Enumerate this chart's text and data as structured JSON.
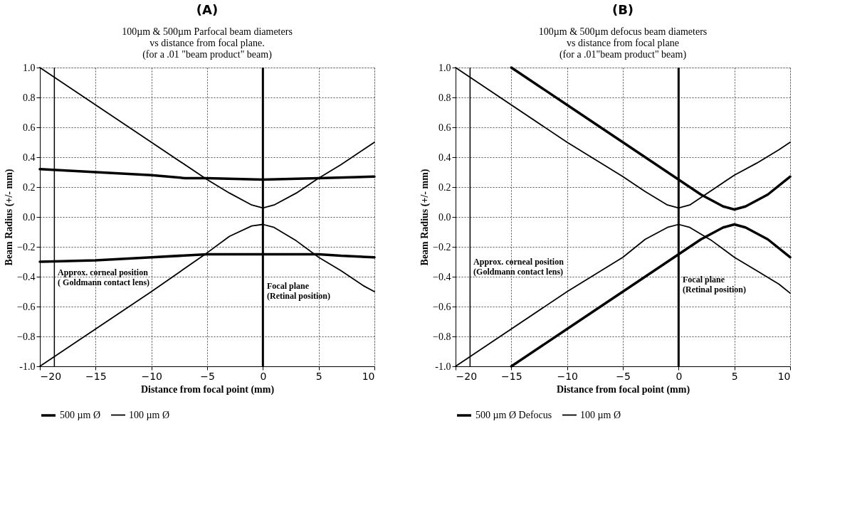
{
  "chart_data": [
    {
      "type": "line",
      "title": "(A)",
      "subtitle": "100µm & 500µm Parfocal beam diameters\nvs distance from focal plane.\n(for a .01 \"beam product\" beam)",
      "xlabel": "Distance from focal point (mm)",
      "ylabel": "Beam Radius (+/- mm)",
      "xlim": [
        -20,
        10
      ],
      "xticks": [
        -20,
        -15,
        -10,
        -5,
        0,
        5,
        10
      ],
      "ylim": [
        -1,
        1
      ],
      "yticks": [
        {
          "value": -1,
          "label": "-1.0"
        },
        -0.8,
        -0.6,
        -0.4,
        -0.2,
        {
          "value": 0,
          "label": "0.0"
        },
        0.2,
        0.4,
        0.6,
        0.8,
        {
          "value": 1,
          "label": "1.0"
        }
      ],
      "grid": true,
      "legend": "bottom",
      "line_style": "solid",
      "marker": "none",
      "series": [
        {
          "name": "500 µm Ø",
          "color": "#000000",
          "x": [
            -20,
            -15,
            -10,
            -7,
            -5,
            0,
            5,
            10
          ],
          "values": [
            0.32,
            0.3,
            0.28,
            0.26,
            0.26,
            0.25,
            0.26,
            0.27
          ]
        },
        {
          "color": "#000000",
          "x": [
            -20,
            -15,
            -10,
            -5,
            0,
            5,
            7,
            10
          ],
          "values": [
            -0.3,
            -0.29,
            -0.27,
            -0.25,
            -0.25,
            -0.25,
            -0.26,
            -0.27
          ]
        },
        {
          "name": "100 µm Ø",
          "color": "#000000",
          "x": [
            -20,
            -10,
            -5,
            -3,
            -1,
            0,
            1,
            3,
            5,
            7,
            9,
            10
          ],
          "values": [
            1.0,
            0.5,
            0.25,
            0.16,
            0.08,
            0.06,
            0.08,
            0.16,
            0.26,
            0.35,
            0.45,
            0.5
          ]
        },
        {
          "color": "#000000",
          "x": [
            -20,
            -15,
            -10,
            -5,
            -3,
            -1,
            0,
            1,
            3,
            5,
            7,
            9,
            10
          ],
          "values": [
            -1.0,
            -0.75,
            -0.5,
            -0.24,
            -0.13,
            -0.06,
            -0.05,
            -0.07,
            -0.16,
            -0.27,
            -0.36,
            -0.46,
            -0.5
          ]
        }
      ],
      "ref_lines": [
        {
          "axis": "x",
          "value": 0,
          "label": "Focal plane\n(Retinal position)",
          "color": "#000000"
        },
        {
          "axis": "x",
          "value": -18.7,
          "label": "Approx. corneal position\n( Goldmann contact lens)",
          "color": "#000000"
        }
      ]
    },
    {
      "type": "line",
      "title": "(B)",
      "subtitle": "100µm & 500µm defocus beam diameters\nvs distance from focal plane\n(for a .01\"beam product\" beam)",
      "xlabel": "Distance from focal point (mm)",
      "ylabel": "Beam Radius (+/- mm)",
      "xlim": [
        -20,
        10
      ],
      "xticks": [
        -20,
        -15,
        -10,
        -5,
        0,
        5,
        10
      ],
      "ylim": [
        -1,
        1
      ],
      "yticks": [
        {
          "value": -1,
          "label": "-1.0"
        },
        -0.8,
        -0.6,
        -0.4,
        -0.2,
        {
          "value": 0,
          "label": "0.0"
        },
        0.2,
        0.4,
        0.6,
        0.8,
        {
          "value": 1,
          "label": "1.0"
        }
      ],
      "grid": true,
      "legend": "bottom",
      "line_style": "solid",
      "marker": "none",
      "series": [
        {
          "name": "500 µm Ø Defocus",
          "color": "#000000",
          "x": [
            -15,
            -10,
            -5,
            0,
            2,
            4,
            5,
            6,
            8,
            10
          ],
          "values": [
            1.0,
            0.75,
            0.5,
            0.25,
            0.15,
            0.07,
            0.05,
            0.07,
            0.15,
            0.27
          ]
        },
        {
          "color": "#000000",
          "x": [
            -15,
            -10,
            -5,
            0,
            2,
            4,
            5,
            6,
            8,
            10
          ],
          "values": [
            -1.0,
            -0.75,
            -0.5,
            -0.25,
            -0.15,
            -0.07,
            -0.05,
            -0.07,
            -0.15,
            -0.27
          ]
        },
        {
          "name": "100 µm Ø",
          "color": "#000000",
          "x": [
            -20,
            -10,
            -5,
            -3,
            -1,
            0,
            1,
            3,
            5,
            7,
            9,
            10
          ],
          "values": [
            1.0,
            0.5,
            0.27,
            0.17,
            0.08,
            0.06,
            0.08,
            0.18,
            0.28,
            0.36,
            0.45,
            0.5
          ]
        },
        {
          "color": "#000000",
          "x": [
            -20,
            -10,
            -5,
            -3,
            -1,
            0,
            1,
            3,
            5,
            7,
            9,
            10
          ],
          "values": [
            -1.0,
            -0.5,
            -0.27,
            -0.15,
            -0.07,
            -0.05,
            -0.07,
            -0.16,
            -0.27,
            -0.36,
            -0.45,
            -0.51
          ]
        }
      ],
      "ref_lines": [
        {
          "axis": "x",
          "value": 0,
          "label": "Focal plane\n(Retinal position)",
          "color": "#000000"
        },
        {
          "axis": "x",
          "value": -18.7,
          "label": "Approx. corneal position\n(Goldmann contact lens)",
          "color": "#000000"
        }
      ]
    }
  ]
}
